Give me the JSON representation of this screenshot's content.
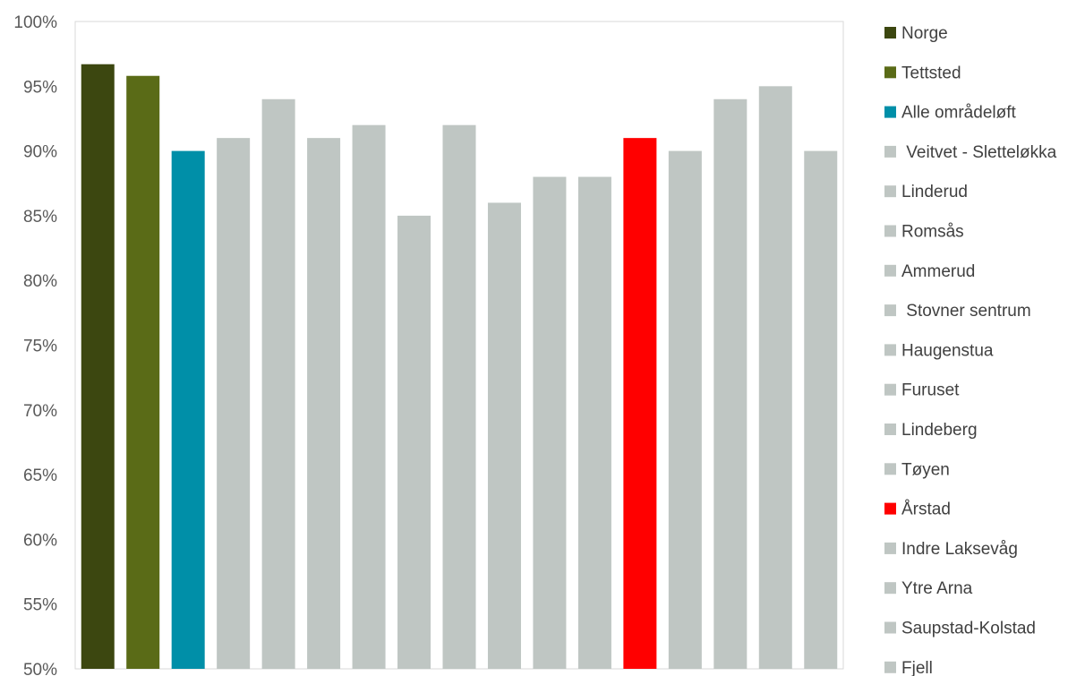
{
  "chart_data": {
    "type": "bar",
    "title": "",
    "xlabel": "",
    "ylabel": "",
    "ylim": [
      0.5,
      1.0
    ],
    "ytick_labels": [
      "50%",
      "55%",
      "60%",
      "65%",
      "70%",
      "75%",
      "80%",
      "85%",
      "90%",
      "95%",
      "100%"
    ],
    "grid": false,
    "legend_position": "right",
    "categories": [
      "Norge",
      "Tettsted",
      "Alle områdeløft",
      " Veitvet - Sletteløkka",
      "Linderud",
      "Romsås",
      "Ammerud",
      " Stovner sentrum",
      "Haugenstua",
      "Furuset",
      "Lindeberg",
      "Tøyen",
      "Årstad",
      "Indre Laksevåg",
      "Ytre Arna",
      "Saupstad-Kolstad",
      "Fjell"
    ],
    "values": [
      0.967,
      0.958,
      0.9,
      0.91,
      0.94,
      0.91,
      0.92,
      0.85,
      0.92,
      0.86,
      0.88,
      0.88,
      0.91,
      0.9,
      0.94,
      0.95,
      0.9
    ],
    "colors": [
      "#3c4710",
      "#5a6b17",
      "#008fa8",
      "#bfc6c3",
      "#bfc6c3",
      "#bfc6c3",
      "#bfc6c3",
      "#bfc6c3",
      "#bfc6c3",
      "#bfc6c3",
      "#bfc6c3",
      "#bfc6c3",
      "#ff0000",
      "#bfc6c3",
      "#bfc6c3",
      "#bfc6c3",
      "#bfc6c3"
    ]
  }
}
